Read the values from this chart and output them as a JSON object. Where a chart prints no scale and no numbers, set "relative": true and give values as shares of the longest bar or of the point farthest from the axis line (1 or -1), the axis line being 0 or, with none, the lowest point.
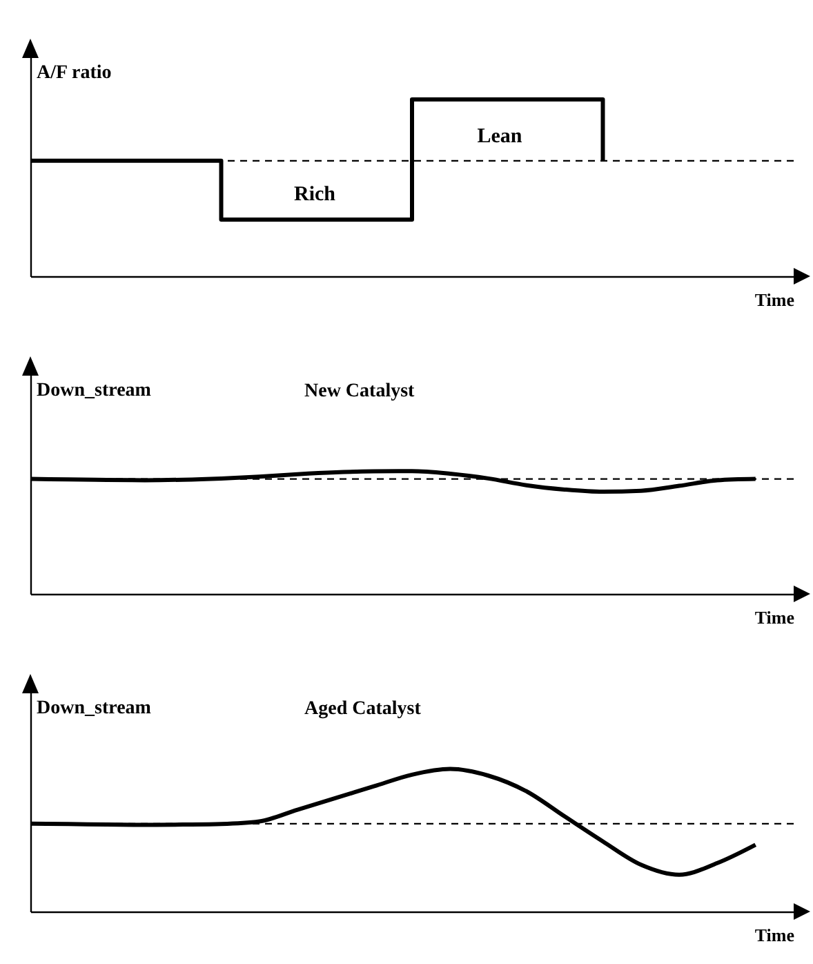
{
  "chart_data": [
    {
      "type": "step",
      "relative": true,
      "ylabel": "A/F ratio",
      "xlabel": "Time",
      "categories": [
        null,
        null,
        null,
        null,
        null
      ],
      "values": [
        0.653,
        0.32,
        1.0,
        0.653,
        null
      ],
      "color": "#000000",
      "ref_lines": [
        {
          "axis": "y",
          "value": 0.653,
          "line_style": "dashed",
          "color": "#000000"
        }
      ],
      "annotations": [
        "Rich",
        "Lean"
      ]
    },
    {
      "type": "line",
      "relative": true,
      "title": "New Catalyst",
      "ylabel": "Down_stream",
      "xlabel": "Time",
      "categories": [
        null,
        null,
        null,
        null,
        null,
        null,
        null,
        null,
        null,
        null,
        null,
        null,
        null,
        null,
        null,
        null,
        null,
        null,
        null,
        null,
        null
      ],
      "values": [
        0.936,
        0.932,
        0.928,
        0.926,
        0.93,
        0.94,
        0.955,
        0.975,
        0.99,
        0.998,
        1.0,
        0.979,
        0.94,
        0.885,
        0.85,
        0.832,
        0.84,
        0.88,
        0.925,
        0.936,
        null
      ],
      "color": "#000000",
      "ref_lines": [
        {
          "axis": "y",
          "value": 0.936,
          "line_style": "dashed",
          "color": "#000000"
        }
      ]
    },
    {
      "type": "line",
      "relative": true,
      "title": "Aged Catalyst",
      "ylabel": "Down_stream",
      "xlabel": "Time",
      "categories": [
        null,
        null,
        null,
        null,
        null,
        null,
        null,
        null,
        null,
        null,
        null,
        null,
        null,
        null,
        null,
        null,
        null,
        null,
        null,
        null,
        null
      ],
      "values": [
        0.616,
        0.614,
        0.61,
        0.608,
        0.61,
        0.614,
        0.632,
        0.714,
        0.796,
        0.878,
        0.96,
        1.0,
        0.953,
        0.843,
        0.667,
        0.492,
        0.328,
        0.258,
        0.34,
        0.468,
        null
      ],
      "color": "#000000",
      "ref_lines": [
        {
          "axis": "y",
          "value": 0.616,
          "line_style": "dashed",
          "color": "#000000"
        }
      ]
    }
  ]
}
